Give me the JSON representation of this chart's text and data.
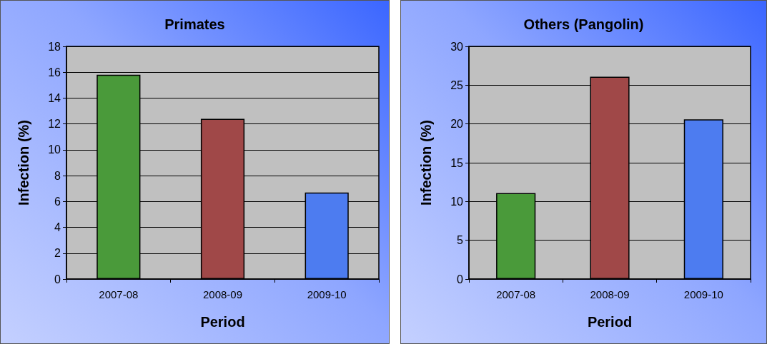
{
  "chart_data": [
    {
      "type": "bar",
      "title": "Primates",
      "xlabel": "Period",
      "ylabel": "Infection (%)",
      "categories": [
        "2007-08",
        "2008-09",
        "2009-10"
      ],
      "values": [
        15.8,
        12.4,
        6.7
      ],
      "colors": [
        "#4a9a3a",
        "#a04848",
        "#4d7cf0"
      ],
      "ylim": [
        0,
        18
      ],
      "yticks": [
        0,
        2,
        4,
        6,
        8,
        10,
        12,
        14,
        16,
        18
      ],
      "grid": "y"
    },
    {
      "type": "bar",
      "title": "Others (Pangolin)",
      "xlabel": "Period",
      "ylabel": "Infection (%)",
      "categories": [
        "2007-08",
        "2008-09",
        "2009-10"
      ],
      "values": [
        11.1,
        26.1,
        20.6
      ],
      "colors": [
        "#4a9a3a",
        "#a04848",
        "#4d7cf0"
      ],
      "ylim": [
        0,
        30
      ],
      "yticks": [
        0,
        5,
        10,
        15,
        20,
        25,
        30
      ],
      "grid": "y"
    }
  ]
}
